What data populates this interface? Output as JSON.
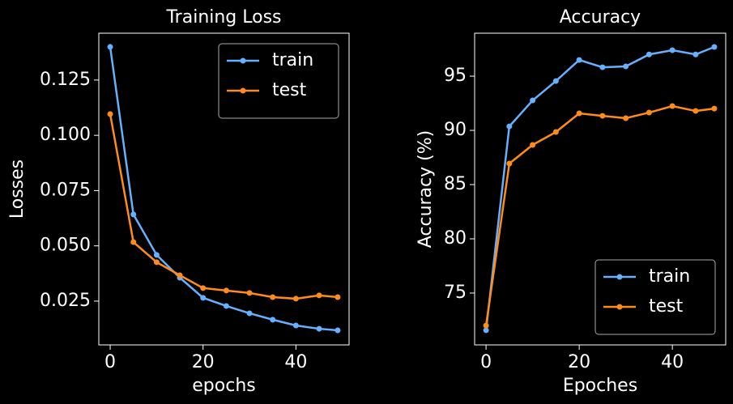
{
  "chart_data": [
    {
      "type": "line",
      "title": "Training Loss",
      "xlabel": "epochs",
      "ylabel": "Losses",
      "x": [
        0,
        5,
        10,
        15,
        20,
        25,
        30,
        35,
        40,
        45,
        49
      ],
      "series": [
        {
          "name": "train",
          "color": "#66b0ff",
          "values": [
            0.14,
            0.0642,
            0.0459,
            0.0356,
            0.0265,
            0.0228,
            0.0195,
            0.0166,
            0.014,
            0.0125,
            0.0118
          ]
        },
        {
          "name": "test",
          "color": "#ff8c1a",
          "values": [
            0.1096,
            0.0517,
            0.0426,
            0.0367,
            0.0309,
            0.0298,
            0.0287,
            0.0268,
            0.0261,
            0.0276,
            0.0268
          ]
        }
      ],
      "xlim": [
        -2.45,
        51.45
      ],
      "xticks": [
        0,
        20,
        40
      ],
      "ylim": [
        0.0052,
        0.1462
      ],
      "yticks": [
        0.025,
        {
          "value": 0.05,
          "label": "0.050"
        },
        0.075,
        {
          "value": 0.1,
          "label": "0.100"
        },
        0.125
      ],
      "legend": "upper right"
    },
    {
      "type": "line",
      "title": "Accuracy",
      "xlabel": "Epoches",
      "ylabel": "Accuracy (%)",
      "x": [
        0,
        5,
        10,
        15,
        20,
        25,
        30,
        35,
        40,
        45,
        49
      ],
      "series": [
        {
          "name": "train",
          "color": "#66b0ff",
          "values": [
            71.57,
            90.37,
            92.76,
            94.55,
            96.49,
            95.82,
            95.9,
            97.0,
            97.39,
            97.0,
            97.69
          ]
        },
        {
          "name": "test",
          "color": "#ff8c1a",
          "values": [
            72.0,
            86.94,
            88.66,
            89.85,
            91.57,
            91.34,
            91.12,
            91.64,
            92.24,
            91.79,
            92.01
          ]
        }
      ],
      "xlim": [
        -2.45,
        51.45
      ],
      "xticks": [
        0,
        20,
        40
      ],
      "ylim": [
        70.22,
        98.96
      ],
      "yticks": [
        75,
        80,
        85,
        90,
        95
      ],
      "legend": "lower right"
    }
  ]
}
